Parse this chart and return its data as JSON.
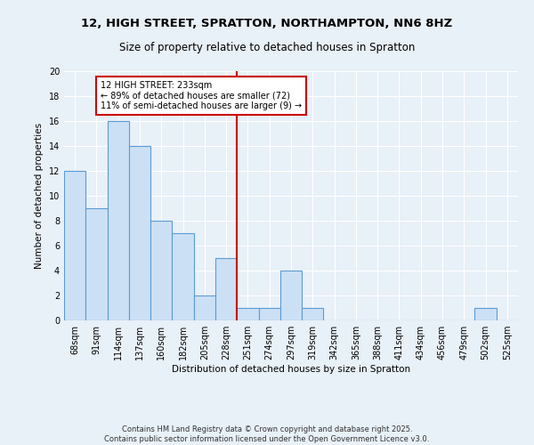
{
  "title": "12, HIGH STREET, SPRATTON, NORTHAMPTON, NN6 8HZ",
  "subtitle": "Size of property relative to detached houses in Spratton",
  "xlabel": "Distribution of detached houses by size in Spratton",
  "ylabel": "Number of detached properties",
  "bar_color": "#cce0f5",
  "bar_edge_color": "#5b9bd5",
  "background_color": "#e8f0f8",
  "grid_color": "#ffffff",
  "bins": [
    "68sqm",
    "91sqm",
    "114sqm",
    "137sqm",
    "160sqm",
    "182sqm",
    "205sqm",
    "228sqm",
    "251sqm",
    "274sqm",
    "297sqm",
    "319sqm",
    "342sqm",
    "365sqm",
    "388sqm",
    "411sqm",
    "434sqm",
    "456sqm",
    "479sqm",
    "502sqm",
    "525sqm"
  ],
  "values": [
    12,
    9,
    16,
    14,
    8,
    7,
    2,
    5,
    1,
    1,
    4,
    1,
    0,
    0,
    0,
    0,
    0,
    0,
    0,
    1,
    0
  ],
  "property_line_x": 7.5,
  "annotation_text": "12 HIGH STREET: 233sqm\n← 89% of detached houses are smaller (72)\n11% of semi-detached houses are larger (9) →",
  "annotation_box_color": "#ffffff",
  "annotation_box_edge": "#cc0000",
  "vline_color": "#cc0000",
  "footer": "Contains HM Land Registry data © Crown copyright and database right 2025.\nContains public sector information licensed under the Open Government Licence v3.0.",
  "ylim": [
    0,
    20
  ],
  "yticks": [
    0,
    2,
    4,
    6,
    8,
    10,
    12,
    14,
    16,
    18,
    20
  ]
}
